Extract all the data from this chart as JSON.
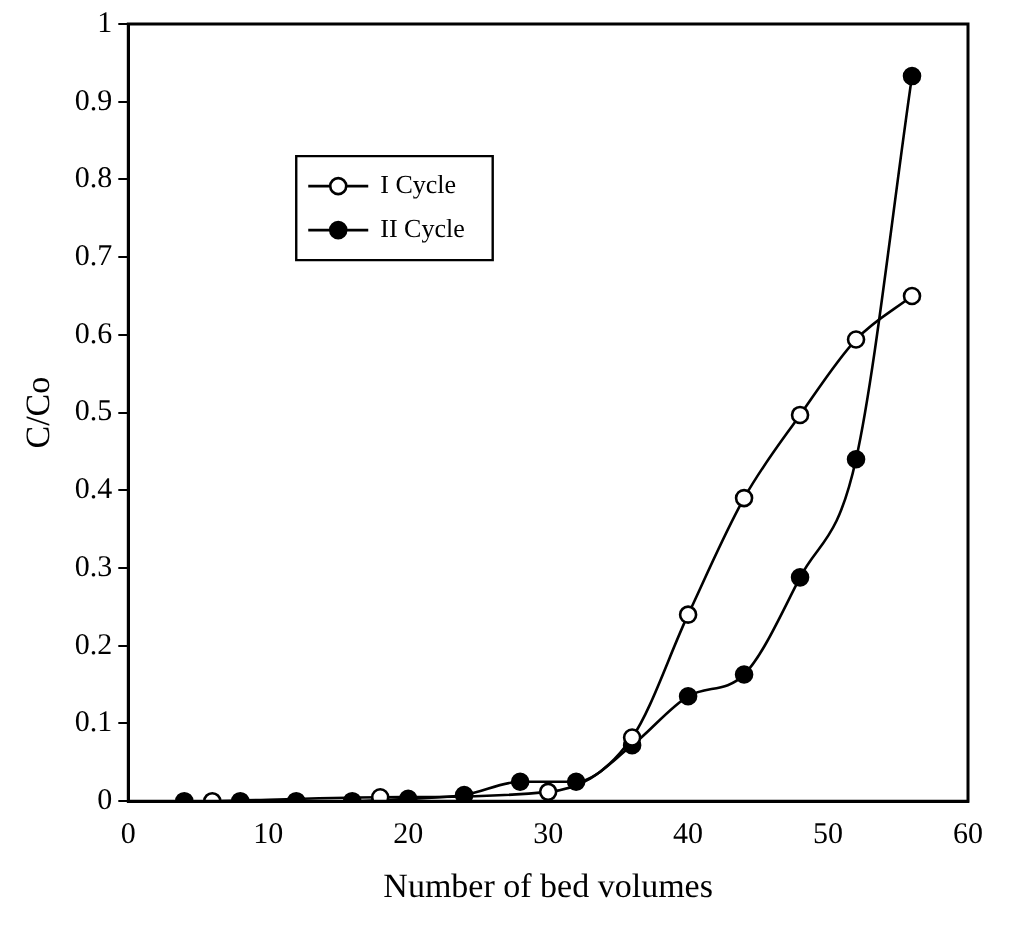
{
  "chart_data": {
    "type": "line",
    "xlabel": "Number of bed volumes",
    "ylabel": "C/Co",
    "xlim": [
      0,
      60
    ],
    "xticks": [
      0,
      10,
      20,
      30,
      40,
      50,
      60
    ],
    "ylim": [
      0,
      1
    ],
    "yticks": [
      0,
      0.1,
      0.2,
      0.3,
      0.4,
      0.5,
      0.6,
      0.7,
      0.8,
      0.9,
      1
    ],
    "grid": false,
    "legend": "top left",
    "marker": "circle",
    "line_style": "solid",
    "series": [
      {
        "name": "I Cycle",
        "color": "#000000",
        "x": [
          6,
          18,
          30,
          36,
          40,
          44,
          48,
          52,
          56
        ],
        "values": [
          0,
          0.005,
          0.012,
          0.082,
          0.24,
          0.39,
          0.497,
          0.594,
          0.65
        ]
      },
      {
        "name": "II Cycle",
        "color": "#000000",
        "x": [
          4,
          8,
          12,
          16,
          20,
          24,
          28,
          32,
          36,
          40,
          44,
          48,
          52,
          56
        ],
        "values": [
          0,
          0,
          0,
          0,
          0.003,
          0.008,
          0.025,
          0.025,
          0.072,
          0.135,
          0.163,
          0.288,
          0.44,
          0.933
        ]
      }
    ]
  }
}
